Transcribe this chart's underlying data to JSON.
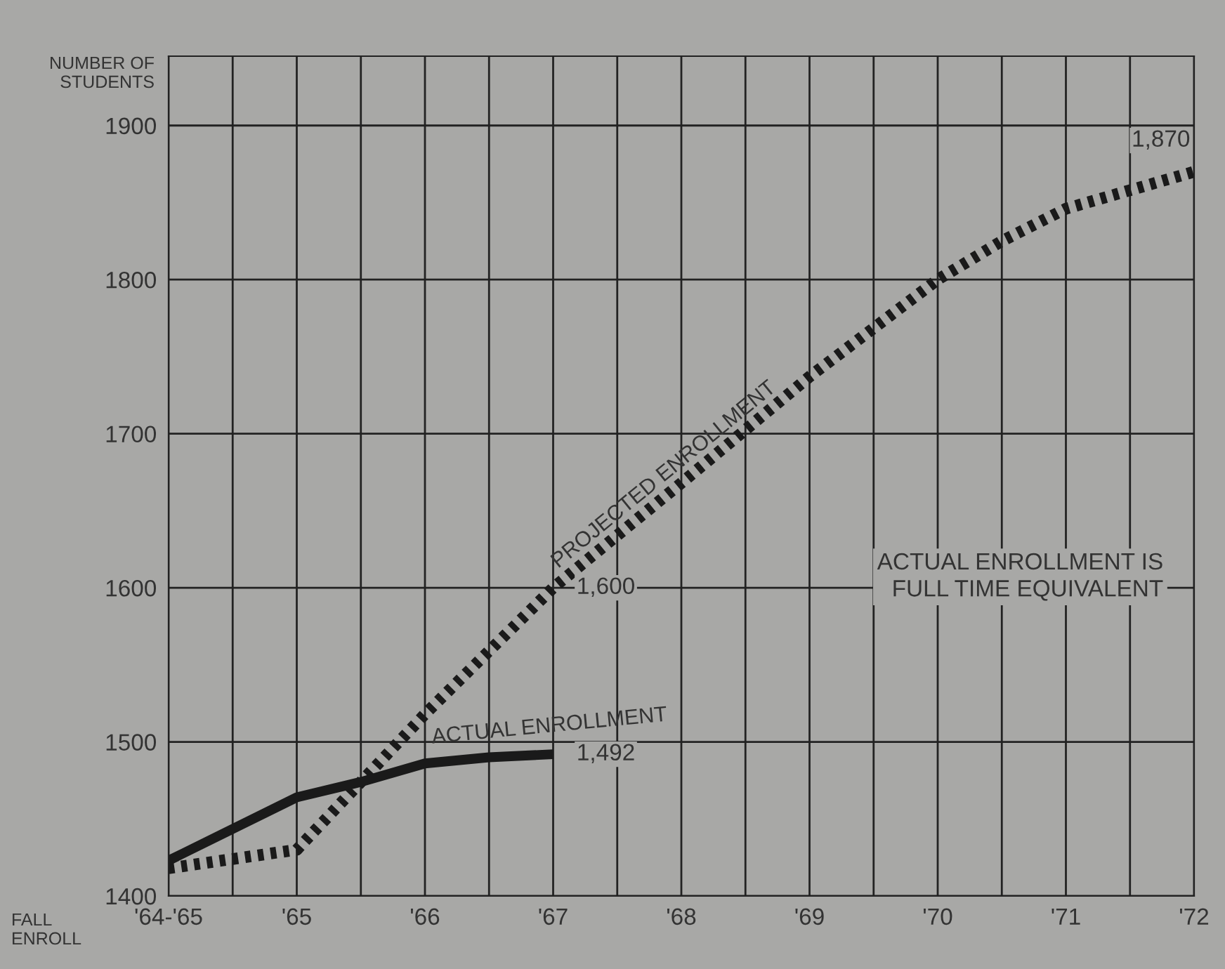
{
  "chart_data": {
    "type": "line",
    "ylabel": "NUMBER OF\nSTUDENTS",
    "xlabel": "FALL\nENROLL",
    "xlim": [
      1964,
      1972
    ],
    "ylim": [
      1400,
      1945
    ],
    "xticks": [
      {
        "value": 1964,
        "label": "'64-'65"
      },
      {
        "value": 1964.5,
        "label": null
      },
      {
        "value": 1965,
        "label": "'65"
      },
      {
        "value": 1965.5,
        "label": null
      },
      {
        "value": 1966,
        "label": "'66"
      },
      {
        "value": 1966.5,
        "label": null
      },
      {
        "value": 1967,
        "label": "'67"
      },
      {
        "value": 1967.5,
        "label": null
      },
      {
        "value": 1968,
        "label": "'68"
      },
      {
        "value": 1968.5,
        "label": null
      },
      {
        "value": 1969,
        "label": "'69"
      },
      {
        "value": 1969.5,
        "label": null
      },
      {
        "value": 1970,
        "label": "'70"
      },
      {
        "value": 1970.5,
        "label": null
      },
      {
        "value": 1971,
        "label": "'71"
      },
      {
        "value": 1971.5,
        "label": null
      },
      {
        "value": 1972,
        "label": "'72"
      }
    ],
    "yticks": [
      1400,
      1500,
      1600,
      1700,
      1800,
      1900
    ],
    "grid": true,
    "legend": false,
    "series": [
      {
        "name": "PROJECTED ENROLLMENT",
        "color": "#1a1a1a",
        "line_style": "dotted",
        "x": [
          1964,
          1965,
          1966,
          1967,
          1968,
          1969,
          1970,
          1970.5,
          1971,
          1971.5,
          1972
        ],
        "values": [
          1418,
          1430,
          1518,
          1600,
          1668,
          1737,
          1800,
          1825,
          1846,
          1858,
          1870
        ],
        "value_labels": [
          null,
          null,
          null,
          "1,600",
          null,
          null,
          null,
          null,
          null,
          null,
          "1,870"
        ]
      },
      {
        "name": "ACTUAL ENROLLMENT",
        "color": "#1a1a1a",
        "line_style": "solid",
        "x": [
          1964,
          1965,
          1965.5,
          1966,
          1966.5,
          1967
        ],
        "values": [
          1423,
          1464,
          1474,
          1486,
          1490,
          1492
        ],
        "value_labels": [
          null,
          null,
          null,
          null,
          null,
          "1,492"
        ]
      }
    ],
    "annotations": [
      "ACTUAL ENROLLMENT IS\nFULL TIME EQUIVALENT"
    ]
  }
}
